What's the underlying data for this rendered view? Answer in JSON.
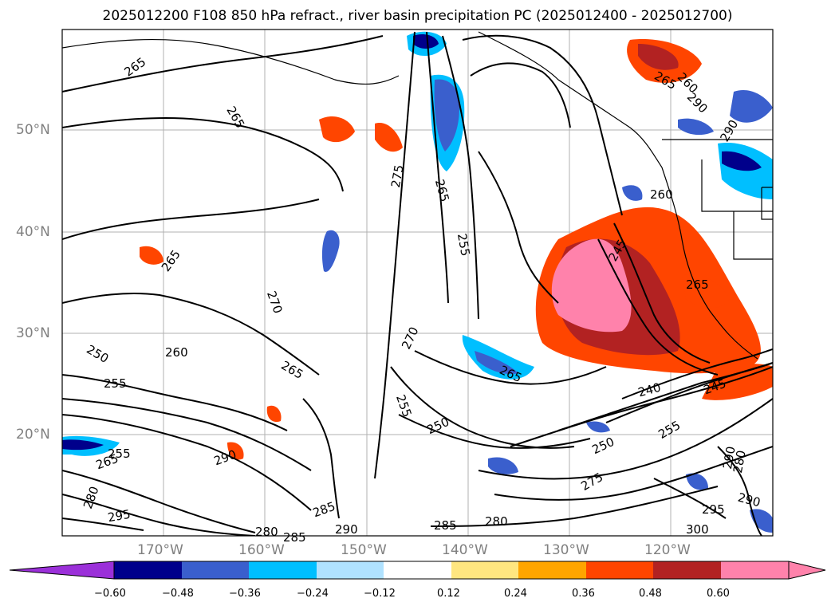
{
  "title": "2025012200 F108 850 hPa refract., river basin precipitation PC (2025012400 - 2025012700)",
  "lat_labels": [
    "50°N",
    "40°N",
    "30°N",
    "20°N"
  ],
  "lon_labels": [
    "170°W",
    "160°W",
    "150°W",
    "140°W",
    "130°W",
    "120°W"
  ],
  "contour_labels": [
    "265",
    "265",
    "275",
    "265",
    "255",
    "265",
    "260",
    "265",
    "265",
    "270",
    "270",
    "255",
    "250",
    "265",
    "250",
    "255",
    "260",
    "240",
    "245",
    "250",
    "275",
    "285",
    "285",
    "280",
    "290",
    "295",
    "300",
    "290",
    "280",
    "265",
    "255",
    "290",
    "295",
    "280",
    "290",
    "285",
    "280",
    "265",
    "245",
    "255",
    "260",
    "290",
    "290"
  ],
  "colorbar": {
    "ticks": [
      "−0.60",
      "−0.48",
      "−0.36",
      "−0.24",
      "−0.12",
      "0.12",
      "0.24",
      "0.36",
      "0.48",
      "0.60"
    ],
    "colors": [
      "#9b30d9",
      "#00008b",
      "#3a5fcd",
      "#00bfff",
      "#b0e2ff",
      "#ffffff",
      "#ffe680",
      "#ffa500",
      "#ff4500",
      "#b22222",
      "#ff82ab"
    ]
  }
}
